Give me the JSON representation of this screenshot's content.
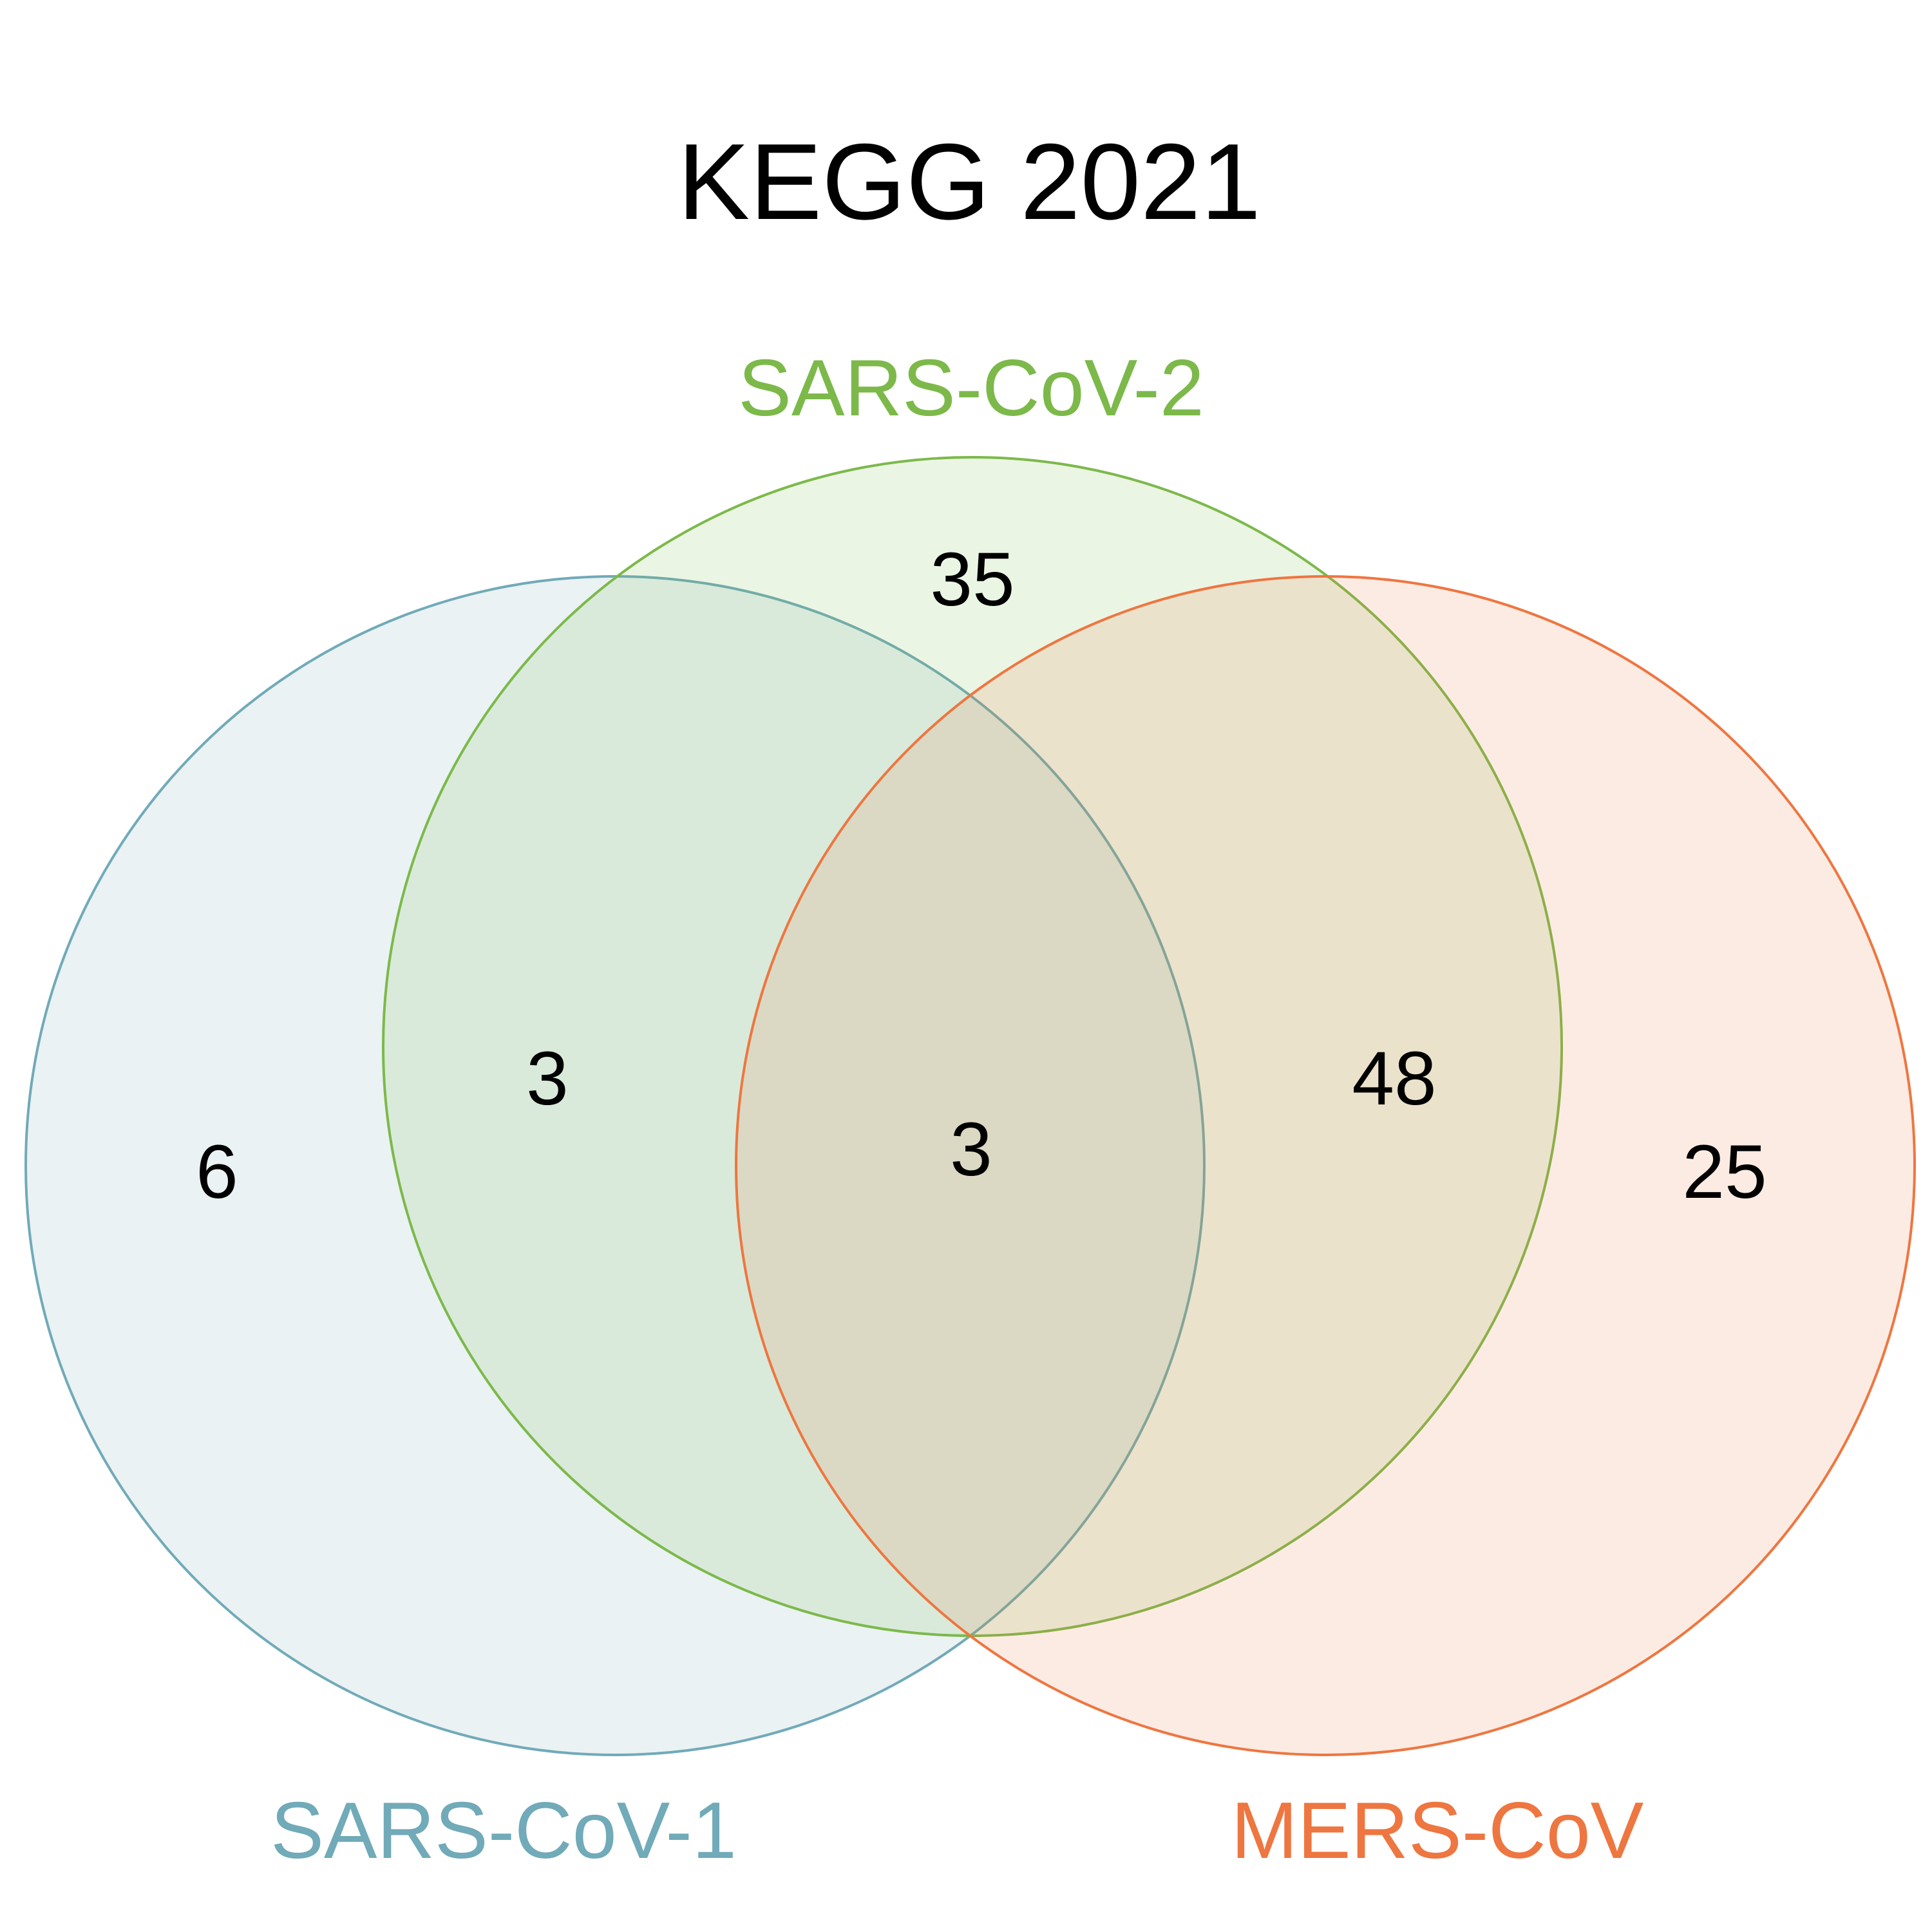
{
  "diagram": {
    "title": "KEGG 2021",
    "sets": [
      {
        "id": "sars1",
        "label": "SARS-CoV-1",
        "color": "#71AAB8"
      },
      {
        "id": "sars2",
        "label": "SARS-CoV-2",
        "color": "#7CB94A"
      },
      {
        "id": "mers",
        "label": "MERS-CoV",
        "color": "#EE7640"
      }
    ],
    "regions": {
      "sars1_only": "6",
      "sars2_only": "35",
      "mers_only": "25",
      "sars1_sars2": "3",
      "sars2_mers": "48",
      "all_three": "3"
    }
  }
}
